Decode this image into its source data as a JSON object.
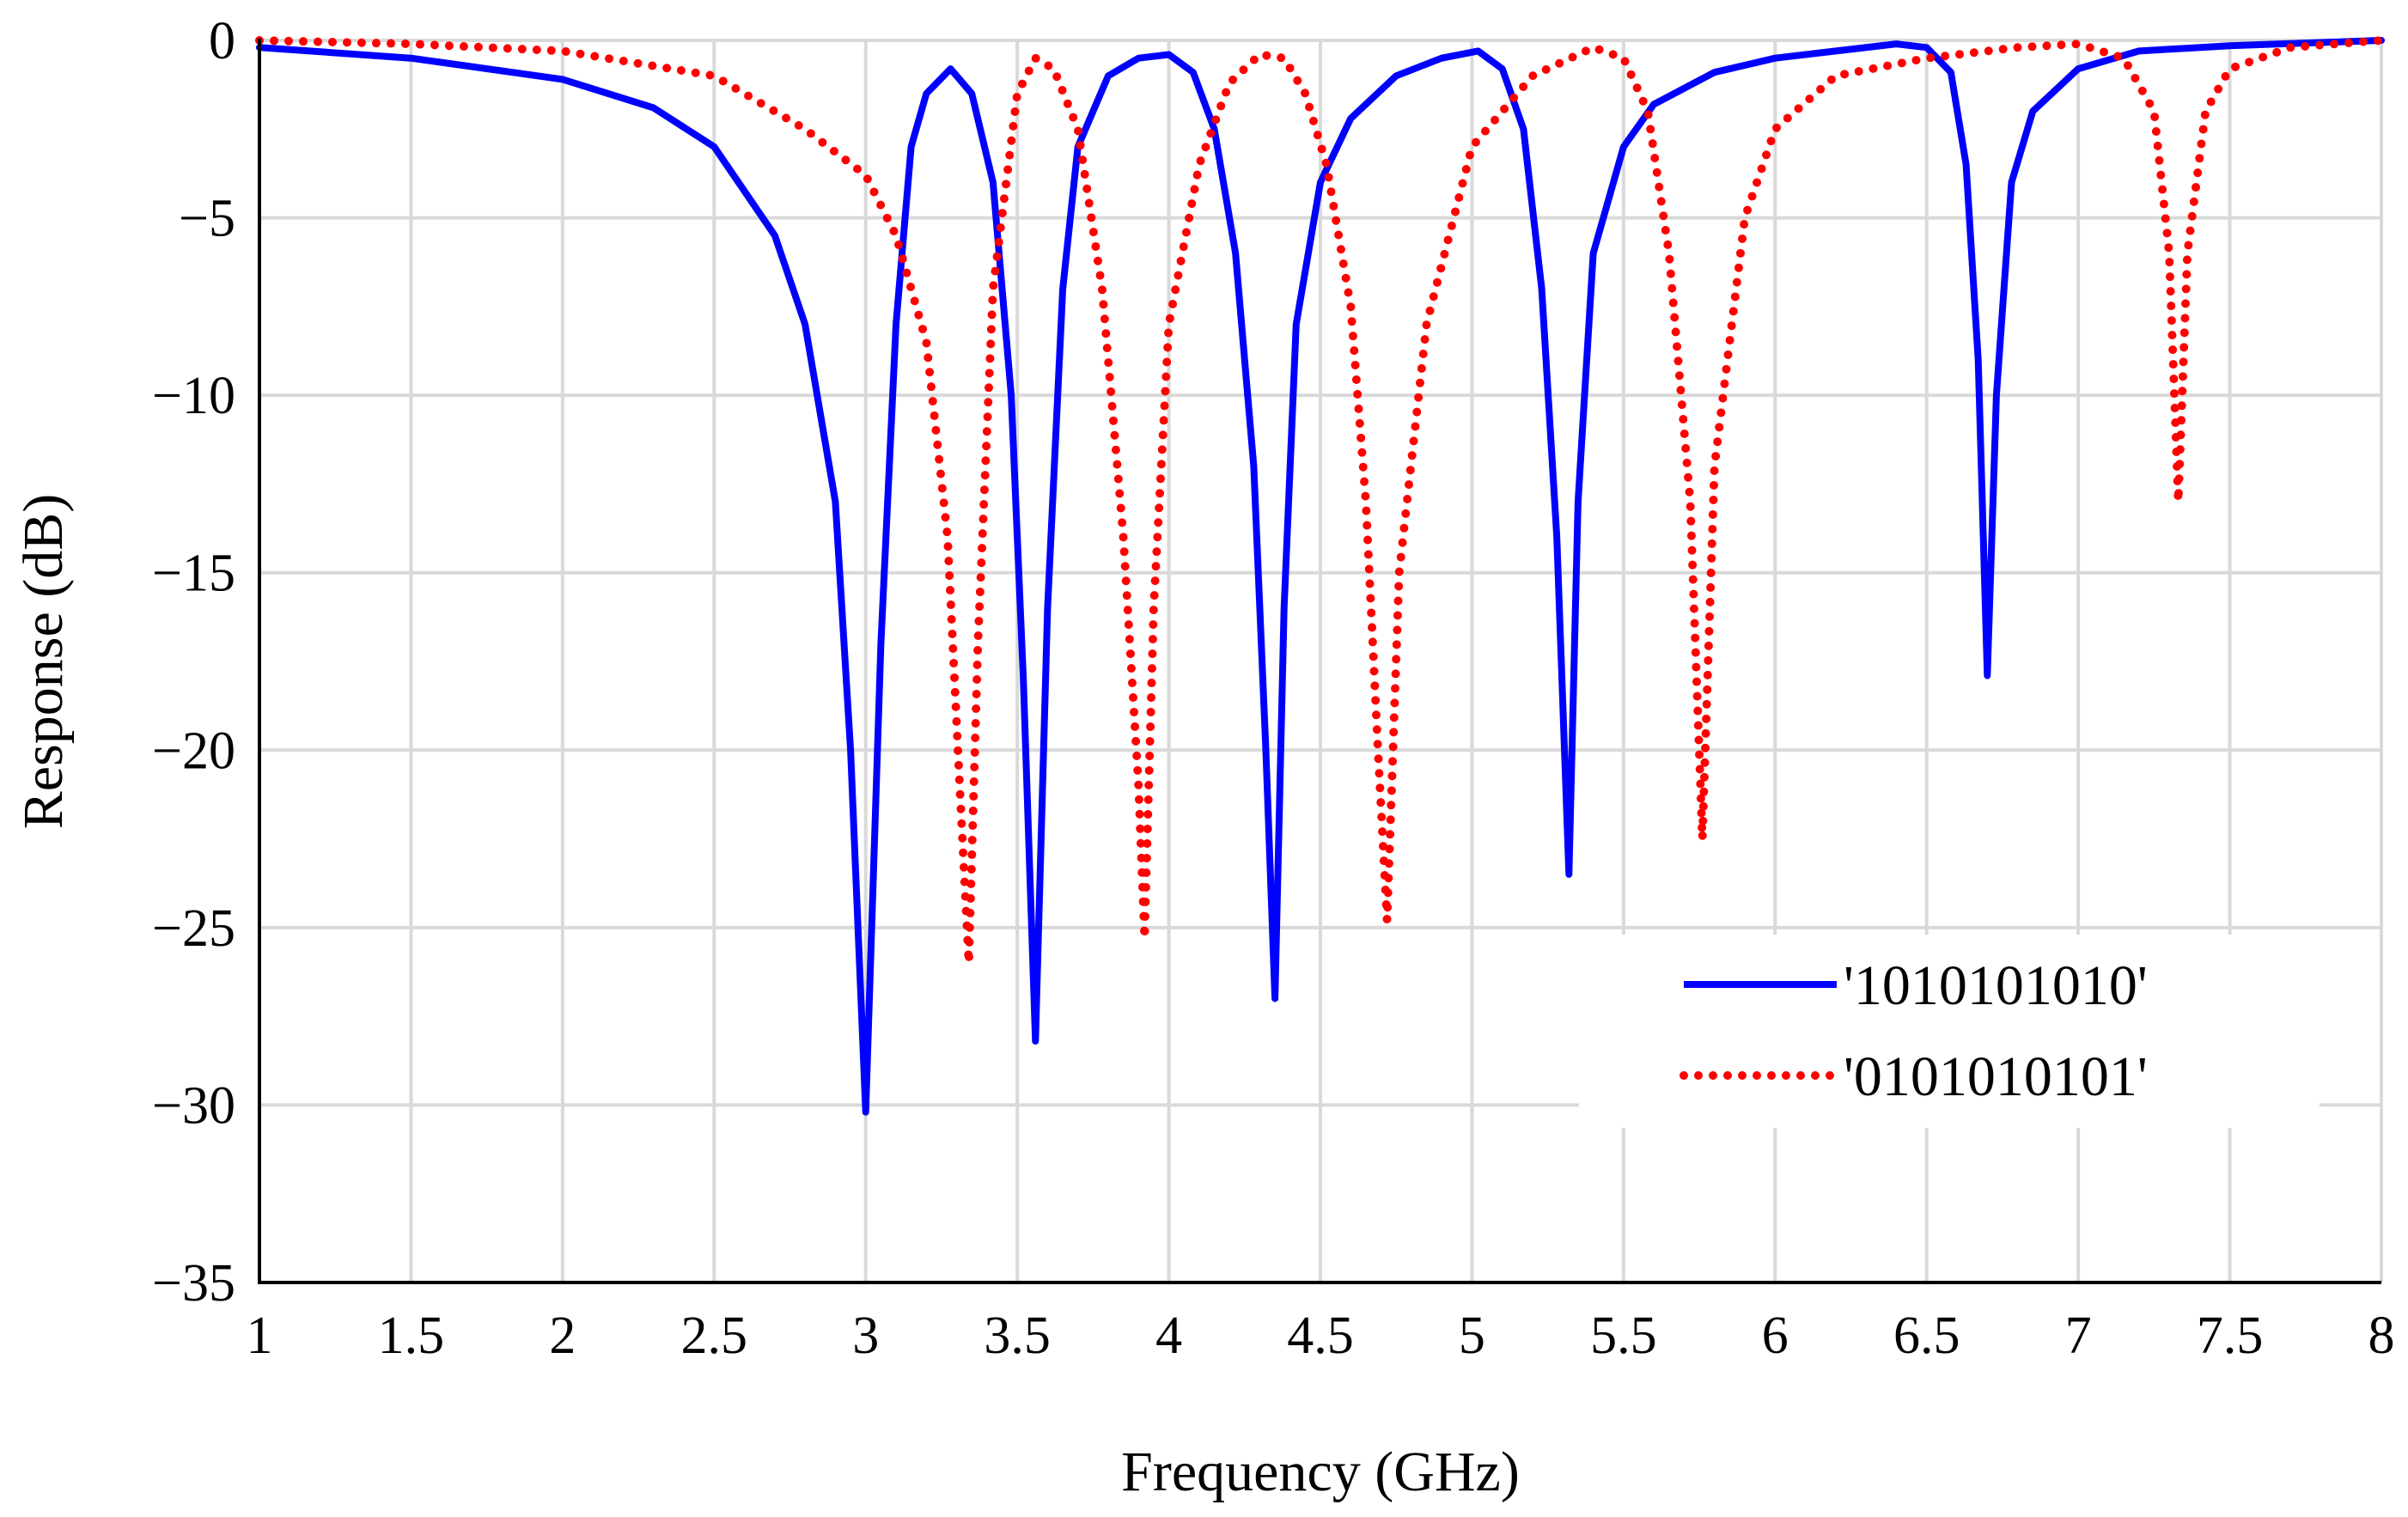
{
  "chart_data": {
    "type": "line",
    "xlabel": "Frequency (GHz)",
    "ylabel": "Response (dB)",
    "xlim": [
      1,
      8
    ],
    "ylim": [
      -35,
      0
    ],
    "xticks": [
      1,
      1.5,
      2,
      2.5,
      3,
      3.5,
      4,
      4.5,
      5,
      5.5,
      6,
      6.5,
      7,
      7.5,
      8
    ],
    "xtick_labels": [
      "1",
      "1.5",
      "2",
      "2.5",
      "3",
      "3.5",
      "4",
      "4.5",
      "5",
      "5.5",
      "6",
      "6.5",
      "7",
      "7.5",
      "8"
    ],
    "yticks": [
      0,
      -5,
      -10,
      -15,
      -20,
      -25,
      -30,
      -35
    ],
    "ytick_labels": [
      "0",
      "−5",
      "−10",
      "−15",
      "−20",
      "−25",
      "−30",
      "−35"
    ],
    "grid": true,
    "legend_position": "bottom-right",
    "series": [
      {
        "name": "'1010101010'",
        "color": "#0000ff",
        "style": "solid",
        "x": [
          1.0,
          1.5,
          2.0,
          2.3,
          2.5,
          2.7,
          2.8,
          2.9,
          2.95,
          3.0,
          3.05,
          3.1,
          3.15,
          3.2,
          3.28,
          3.35,
          3.42,
          3.48,
          3.52,
          3.56,
          3.6,
          3.65,
          3.7,
          3.8,
          3.9,
          4.0,
          4.08,
          4.15,
          4.22,
          4.28,
          4.32,
          4.35,
          4.38,
          4.42,
          4.5,
          4.6,
          4.75,
          4.9,
          5.02,
          5.1,
          5.17,
          5.23,
          5.28,
          5.32,
          5.35,
          5.4,
          5.5,
          5.6,
          5.8,
          6.0,
          6.2,
          6.4,
          6.5,
          6.58,
          6.63,
          6.67,
          6.7,
          6.73,
          6.78,
          6.85,
          7.0,
          7.2,
          7.5,
          8.0
        ],
        "y": [
          -0.2,
          -0.5,
          -1.1,
          -1.9,
          -3.0,
          -5.5,
          -8.0,
          -13.0,
          -20.0,
          -30.2,
          -17.0,
          -8.0,
          -3.0,
          -1.5,
          -0.8,
          -1.5,
          -4.0,
          -10.0,
          -18.0,
          -28.2,
          -16.0,
          -7.0,
          -3.0,
          -1.0,
          -0.5,
          -0.4,
          -0.9,
          -2.5,
          -6.0,
          -12.0,
          -20.0,
          -27.0,
          -16.0,
          -8.0,
          -4.0,
          -2.2,
          -1.0,
          -0.5,
          -0.3,
          -0.8,
          -2.5,
          -7.0,
          -14.0,
          -23.5,
          -13.0,
          -6.0,
          -3.0,
          -1.8,
          -0.9,
          -0.5,
          -0.3,
          -0.1,
          -0.2,
          -0.9,
          -3.5,
          -9.0,
          -17.9,
          -10.0,
          -4.0,
          -2.0,
          -0.8,
          -0.3,
          -0.15,
          0.0
        ]
      },
      {
        "name": "'0101010101'",
        "color": "#ff0000",
        "style": "dotted",
        "x": [
          1.0,
          1.5,
          2.0,
          2.5,
          2.8,
          3.0,
          3.1,
          3.2,
          3.27,
          3.31,
          3.34,
          3.37,
          3.42,
          3.5,
          3.56,
          3.62,
          3.7,
          3.78,
          3.85,
          3.9,
          3.92,
          3.95,
          4.0,
          4.1,
          4.2,
          4.3,
          4.38,
          4.45,
          4.52,
          4.6,
          4.65,
          4.69,
          4.72,
          4.76,
          4.85,
          5.0,
          5.2,
          5.4,
          5.5,
          5.58,
          5.65,
          5.72,
          5.76,
          5.8,
          5.9,
          6.0,
          6.2,
          6.5,
          6.8,
          7.0,
          7.15,
          7.25,
          7.3,
          7.33,
          7.36,
          7.42,
          7.5,
          7.7,
          8.0
        ],
        "y": [
          0.0,
          -0.1,
          -0.3,
          -1.0,
          -2.5,
          -3.8,
          -5.5,
          -8.5,
          -14.0,
          -21.0,
          -26.0,
          -17.0,
          -7.0,
          -1.5,
          -0.5,
          -0.8,
          -2.5,
          -7.0,
          -14.0,
          -21.0,
          -25.3,
          -16.0,
          -8.0,
          -3.5,
          -1.2,
          -0.4,
          -0.5,
          -1.5,
          -3.5,
          -7.5,
          -13.0,
          -20.0,
          -24.8,
          -15.0,
          -8.0,
          -3.0,
          -1.0,
          -0.2,
          -0.5,
          -2.0,
          -6.0,
          -13.0,
          -22.5,
          -12.0,
          -5.0,
          -2.5,
          -1.0,
          -0.5,
          -0.2,
          -0.1,
          -0.5,
          -2.0,
          -6.0,
          -13.0,
          -6.0,
          -2.0,
          -0.8,
          -0.2,
          0.0
        ]
      }
    ]
  }
}
